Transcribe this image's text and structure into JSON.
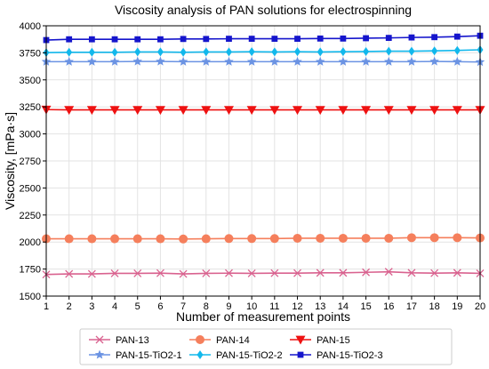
{
  "chart_data": {
    "type": "line",
    "title": "Viscosity analysis of PAN solutions for electrospinning",
    "xlabel": "Number of measurement points",
    "ylabel": "Viscosity, [mPa·s]",
    "x": [
      1,
      2,
      3,
      4,
      5,
      6,
      7,
      8,
      9,
      10,
      11,
      12,
      13,
      14,
      15,
      16,
      17,
      18,
      19,
      20
    ],
    "xlim": [
      1,
      20
    ],
    "ylim": [
      1500,
      4000
    ],
    "yticks": [
      1500,
      1750,
      2000,
      2250,
      2500,
      2750,
      3000,
      3250,
      3500,
      3750,
      4000
    ],
    "grid": true,
    "legend_position": "bottom-outside",
    "series": [
      {
        "name": "PAN-13",
        "color": "#d9628f",
        "marker": "x",
        "values": [
          1700,
          1705,
          1705,
          1710,
          1710,
          1712,
          1705,
          1710,
          1712,
          1710,
          1712,
          1712,
          1715,
          1715,
          1720,
          1725,
          1715,
          1712,
          1715,
          1710
        ]
      },
      {
        "name": "PAN-14",
        "color": "#f57f5c",
        "marker": "circle",
        "values": [
          2030,
          2030,
          2030,
          2030,
          2030,
          2030,
          2028,
          2030,
          2032,
          2032,
          2032,
          2035,
          2035,
          2035,
          2035,
          2035,
          2040,
          2040,
          2040,
          2038
        ]
      },
      {
        "name": "PAN-15",
        "color": "#ee1111",
        "marker": "triangle-down",
        "values": [
          3225,
          3222,
          3222,
          3222,
          3222,
          3222,
          3222,
          3222,
          3222,
          3222,
          3222,
          3222,
          3222,
          3222,
          3222,
          3222,
          3222,
          3222,
          3222,
          3222
        ]
      },
      {
        "name": "PAN-15-TiO2-1",
        "color": "#6b93e3",
        "marker": "star",
        "values": [
          3668,
          3668,
          3668,
          3668,
          3670,
          3670,
          3668,
          3668,
          3668,
          3668,
          3668,
          3668,
          3668,
          3668,
          3668,
          3668,
          3668,
          3670,
          3668,
          3665
        ]
      },
      {
        "name": "PAN-15-TiO2-2",
        "color": "#12b8ec",
        "marker": "diamond",
        "values": [
          3752,
          3755,
          3755,
          3755,
          3758,
          3758,
          3755,
          3758,
          3758,
          3760,
          3758,
          3760,
          3758,
          3760,
          3762,
          3765,
          3765,
          3768,
          3772,
          3778
        ]
      },
      {
        "name": "PAN-15-TiO2-3",
        "color": "#1515cc",
        "marker": "square",
        "values": [
          3868,
          3875,
          3875,
          3875,
          3875,
          3875,
          3878,
          3878,
          3880,
          3880,
          3880,
          3880,
          3882,
          3882,
          3885,
          3888,
          3892,
          3895,
          3900,
          3908
        ]
      }
    ]
  }
}
